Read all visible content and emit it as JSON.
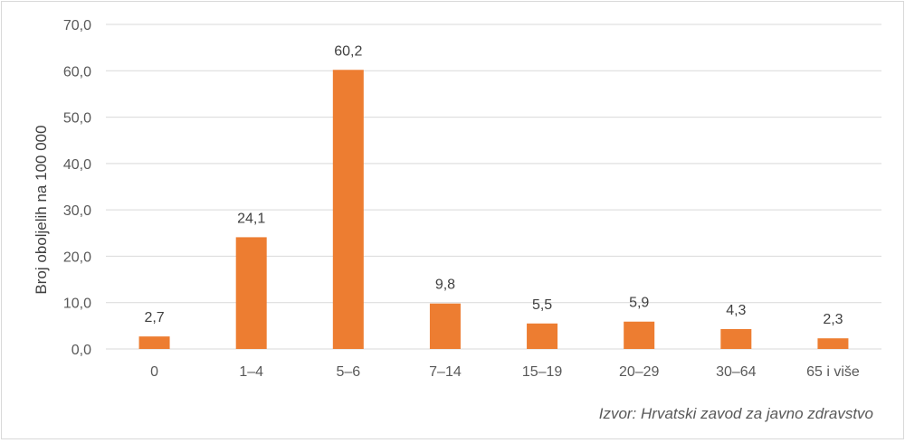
{
  "chart_data": {
    "type": "bar",
    "categories": [
      "0",
      "1–4",
      "5–6",
      "7–14",
      "15–19",
      "20–29",
      "30–64",
      "65 i više"
    ],
    "values": [
      2.7,
      24.1,
      60.2,
      9.8,
      5.5,
      5.9,
      4.3,
      2.3
    ],
    "data_labels": [
      "2,7",
      "24,1",
      "60,2",
      "9,8",
      "5,5",
      "5,9",
      "4,3",
      "2,3"
    ],
    "ylabel": "Broj oboljelih na 100 000",
    "ylim": [
      0,
      70
    ],
    "yticks": [
      0,
      10,
      20,
      30,
      40,
      50,
      60,
      70
    ],
    "ytick_labels": [
      "0,0",
      "10,0",
      "20,0",
      "30,0",
      "40,0",
      "50,0",
      "60,0",
      "70,0"
    ],
    "grid": true,
    "legend": "none",
    "bar_color": "#ed7d31",
    "source_note": "Izvor: Hrvatski zavod za javno zdravstvo"
  }
}
